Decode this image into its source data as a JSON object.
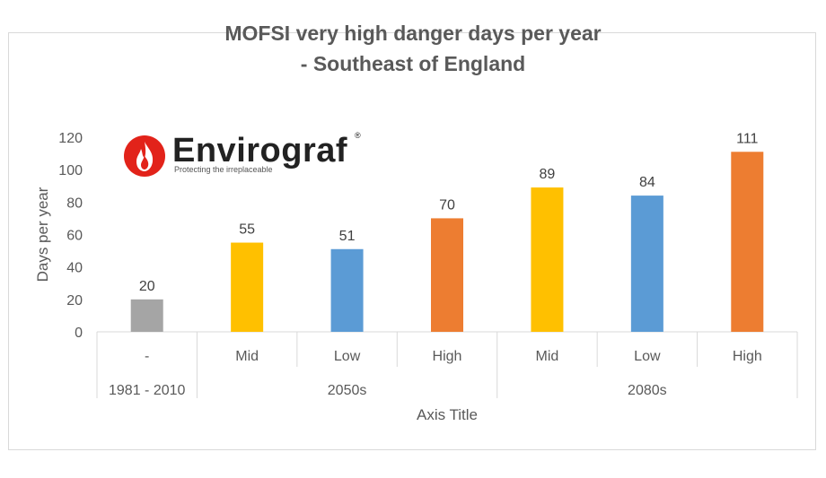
{
  "chart_data": {
    "type": "bar",
    "title_lines": [
      "MOFSI very high danger days per year",
      "- Southeast of England"
    ],
    "ylabel": "Days per year",
    "xlabel": "Axis Title",
    "ylim": [
      0,
      120
    ],
    "yticks": [
      0,
      20,
      40,
      60,
      80,
      100,
      120
    ],
    "grid": false,
    "legend": "none",
    "categories": [
      "-",
      "Mid",
      "Low",
      "High",
      "Mid",
      "Low",
      "High"
    ],
    "groups": [
      {
        "label": "1981 - 2010",
        "span": 1
      },
      {
        "label": "2050s",
        "span": 3
      },
      {
        "label": "2080s",
        "span": 3
      }
    ],
    "values": [
      20,
      55,
      51,
      70,
      89,
      84,
      111
    ],
    "colors": [
      "#A5A5A5",
      "#FFC000",
      "#5B9BD5",
      "#ED7D31",
      "#FFC000",
      "#5B9BD5",
      "#ED7D31"
    ],
    "data_labels": [
      "20",
      "55",
      "51",
      "70",
      "89",
      "84",
      "111"
    ]
  },
  "logo": {
    "name": "Envirograf",
    "registered": "®",
    "tagline": "Protecting the irreplaceable",
    "mark_color": "#E2231A",
    "icon": "flame-icon"
  }
}
